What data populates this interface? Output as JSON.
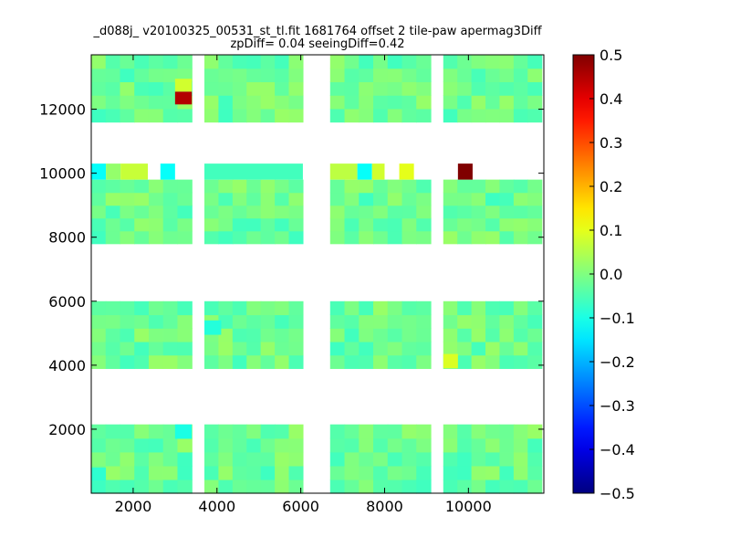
{
  "chart_data": {
    "type": "heatmap",
    "title_line1": "_d088j_ v20100325_00531_st_tl.fit 1681764 offset 2 tile-paw apermag3Diff",
    "title_line2": "zpDiff= 0.04 seeingDiff=0.42",
    "xlim": [
      1000,
      11800
    ],
    "ylim": [
      0,
      13700
    ],
    "x_ticks": [
      2000,
      4000,
      6000,
      8000,
      10000
    ],
    "y_ticks": [
      2000,
      4000,
      6000,
      8000,
      10000,
      12000
    ],
    "colorbar": {
      "colormap": "jet",
      "vmin": -0.5,
      "vmax": 0.5,
      "ticks": [
        "0.5",
        "0.4",
        "0.3",
        "0.2",
        "0.1",
        "0.0",
        "−0.1",
        "−0.2",
        "−0.3",
        "−0.4",
        "−0.5"
      ]
    },
    "x_blocks": [
      [
        1000,
        3400
      ],
      [
        3700,
        6050
      ],
      [
        6700,
        9100
      ],
      [
        9400,
        11750
      ]
    ],
    "y_blocks": [
      [
        0,
        2150
      ],
      [
        3900,
        6000
      ],
      [
        7800,
        9800
      ],
      [
        11600,
        13700
      ]
    ],
    "stray_row": {
      "y_range": [
        9800,
        10300
      ],
      "cells": [
        {
          "x": [
            1000,
            1350
          ],
          "v": -0.12
        },
        {
          "x": [
            1350,
            1700
          ],
          "v": 0.02
        },
        {
          "x": [
            1700,
            2350
          ],
          "v": 0.07
        },
        {
          "x": [
            2650,
            3000
          ],
          "v": -0.12
        },
        {
          "x": [
            3700,
            6050
          ],
          "v": -0.06
        },
        {
          "x": [
            6700,
            7350
          ],
          "v": 0.06
        },
        {
          "x": [
            7350,
            7700
          ],
          "v": -0.12
        },
        {
          "x": [
            7700,
            8000
          ],
          "v": 0.08
        },
        {
          "x": [
            8350,
            8700
          ],
          "v": 0.1
        },
        {
          "x": [
            9750,
            10100
          ],
          "v": 0.5
        }
      ]
    },
    "hot_cells": [
      {
        "x": [
          3000,
          3400
        ],
        "y": [
          12150,
          12550
        ],
        "v": 0.45
      },
      {
        "x": [
          3000,
          3400
        ],
        "y": [
          12550,
          12950
        ],
        "v": 0.08
      },
      {
        "x": [
          9400,
          9750
        ],
        "y": [
          3900,
          4350
        ],
        "v": 0.09
      },
      {
        "x": [
          3000,
          3400
        ],
        "y": [
          1700,
          2150
        ],
        "v": -0.1
      },
      {
        "x": [
          1000,
          1350
        ],
        "y": [
          400,
          800
        ],
        "v": -0.08
      },
      {
        "x": [
          3700,
          4100
        ],
        "y": [
          4950,
          5400
        ],
        "v": -0.09
      }
    ]
  }
}
